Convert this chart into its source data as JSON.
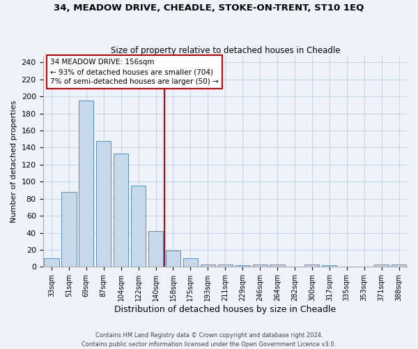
{
  "title": "34, MEADOW DRIVE, CHEADLE, STOKE-ON-TRENT, ST10 1EQ",
  "subtitle": "Size of property relative to detached houses in Cheadle",
  "xlabel": "Distribution of detached houses by size in Cheadle",
  "ylabel": "Number of detached properties",
  "footer_line1": "Contains HM Land Registry data © Crown copyright and database right 2024.",
  "footer_line2": "Contains public sector information licensed under the Open Government Licence v3.0.",
  "bar_labels": [
    "33sqm",
    "51sqm",
    "69sqm",
    "87sqm",
    "104sqm",
    "122sqm",
    "140sqm",
    "158sqm",
    "175sqm",
    "193sqm",
    "211sqm",
    "229sqm",
    "246sqm",
    "264sqm",
    "282sqm",
    "300sqm",
    "317sqm",
    "335sqm",
    "353sqm",
    "371sqm",
    "388sqm"
  ],
  "bar_values": [
    10,
    88,
    195,
    148,
    133,
    95,
    42,
    19,
    10,
    3,
    3,
    2,
    3,
    3,
    0,
    3,
    2,
    0,
    0,
    3,
    3
  ],
  "bar_color": "#c8d8eb",
  "bar_edgecolor": "#5b8db8",
  "grid_color": "#c8d4e8",
  "bg_color": "#eef2fa",
  "vline_color": "#cc0000",
  "vline_x": 6.5,
  "annotation_line1": "34 MEADOW DRIVE: 156sqm",
  "annotation_line2": "← 93% of detached houses are smaller (704)",
  "annotation_line3": "7% of semi-detached houses are larger (50) →",
  "ylim_max": 248,
  "yticks": [
    0,
    20,
    40,
    60,
    80,
    100,
    120,
    140,
    160,
    180,
    200,
    220,
    240
  ]
}
